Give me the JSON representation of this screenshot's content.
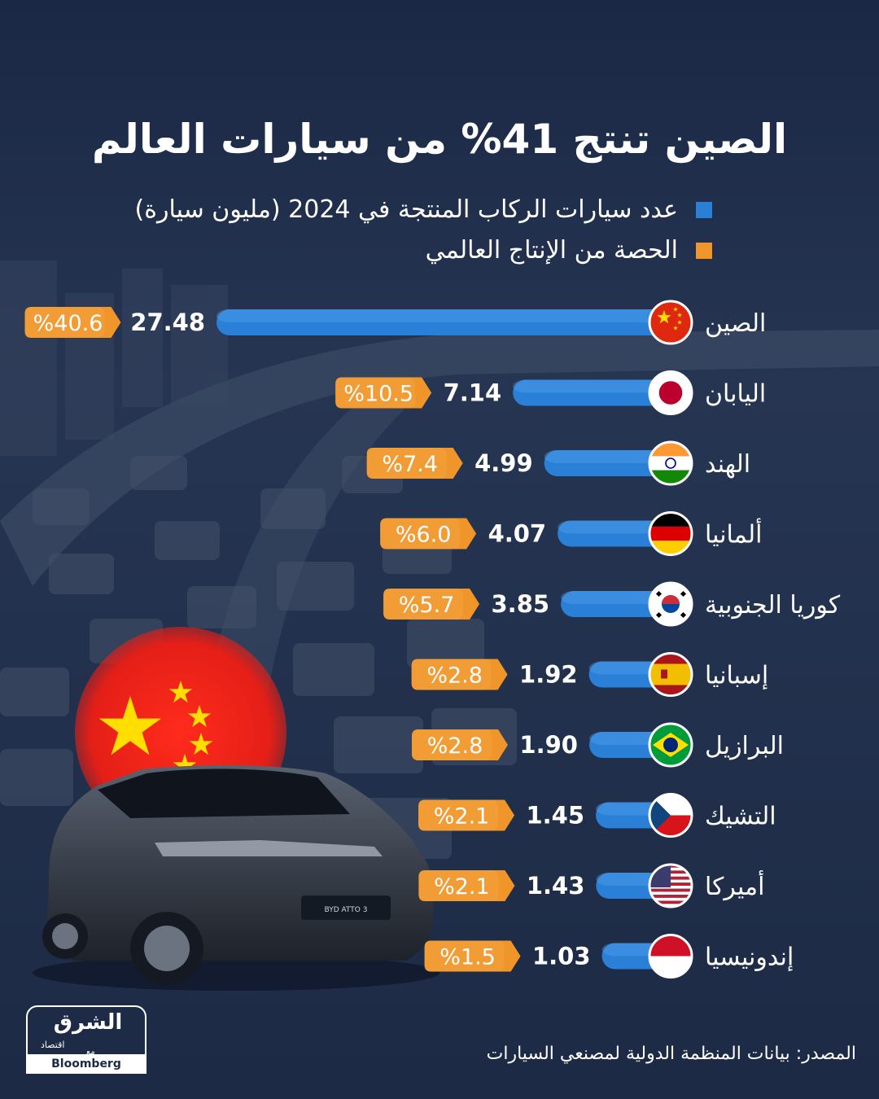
{
  "header": {
    "title": "الصين تنتج 41% من سيارات العالم"
  },
  "legend": [
    {
      "label": "عدد سيارات الركاب المنتجة في 2024 (مليون سيارة)",
      "color": "#2a7fd6"
    },
    {
      "label": "الحصة من الإنتاج العالمي",
      "color": "#f0952a"
    }
  ],
  "chart_data": {
    "type": "bar",
    "orientation": "horizontal",
    "categories": [
      "الصين",
      "اليابان",
      "الهند",
      "ألمانيا",
      "كوريا الجنوبية",
      "إسبانيا",
      "البرازيل",
      "التشيك",
      "أميركا",
      "إندونيسيا"
    ],
    "series": [
      {
        "name": "عدد سيارات الركاب المنتجة في 2024 (مليون سيارة)",
        "values": [
          27.48,
          7.14,
          4.99,
          4.07,
          3.85,
          1.92,
          1.9,
          1.45,
          1.43,
          1.03
        ],
        "labels": [
          "27.48",
          "7.14",
          "4.99",
          "4.07",
          "3.85",
          "1.92",
          "1.90",
          "1.45",
          "1.43",
          "1.03"
        ]
      },
      {
        "name": "الحصة من الإنتاج العالمي",
        "values": [
          40.6,
          10.5,
          7.4,
          6.0,
          5.7,
          2.8,
          2.8,
          2.1,
          2.1,
          1.5
        ],
        "labels": [
          "%40.6",
          "%10.5",
          "%7.4",
          "%6.0",
          "%5.7",
          "%2.8",
          "%2.8",
          "%2.1",
          "%2.1",
          "%1.5"
        ]
      }
    ],
    "flags": [
      "china-flag-icon",
      "japan-flag-icon",
      "india-flag-icon",
      "germany-flag-icon",
      "south-korea-flag-icon",
      "spain-flag-icon",
      "brazil-flag-icon",
      "czech-flag-icon",
      "usa-flag-icon",
      "indonesia-flag-icon"
    ],
    "bar_color": "#2a7fd6",
    "share_color": "#f0952a"
  },
  "footer": {
    "logo_main": "الشرق",
    "logo_sub": "اقتصاد",
    "logo_with": "مع",
    "logo_bloomberg": "Bloomberg",
    "source": "المصدر: بيانات المنظمة الدولية لمصنعي السيارات"
  }
}
